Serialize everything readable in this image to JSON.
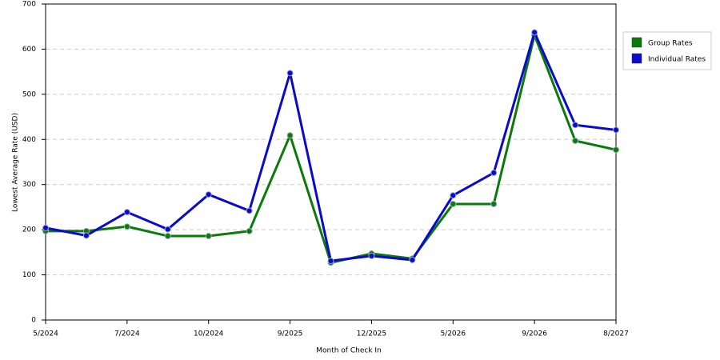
{
  "chart_data": {
    "type": "line",
    "x_label": "Month of Check In",
    "y_label": "Lowest Average Rate (USD)",
    "categories": [
      "5/2024",
      null,
      "7/2024",
      null,
      "10/2024",
      null,
      "9/2025",
      null,
      "12/2025",
      null,
      "5/2026",
      null,
      "9/2026",
      null,
      "8/2027"
    ],
    "series": [
      {
        "name": "Group Rates",
        "color": "#0a7a0a",
        "values": [
          197,
          197,
          207,
          186,
          186,
          197,
          409,
          127,
          147,
          136,
          257,
          257,
          631,
          397,
          377
        ]
      },
      {
        "name": "Individual Rates",
        "color": "#0a0acc",
        "values": [
          204,
          187,
          239,
          201,
          278,
          242,
          547,
          131,
          142,
          133,
          276,
          326,
          637,
          432,
          421
        ]
      }
    ],
    "ylim": [
      0,
      700
    ],
    "yticks": [
      0,
      100,
      200,
      300,
      400,
      500,
      600,
      700
    ],
    "grid": true,
    "legend": "right"
  }
}
